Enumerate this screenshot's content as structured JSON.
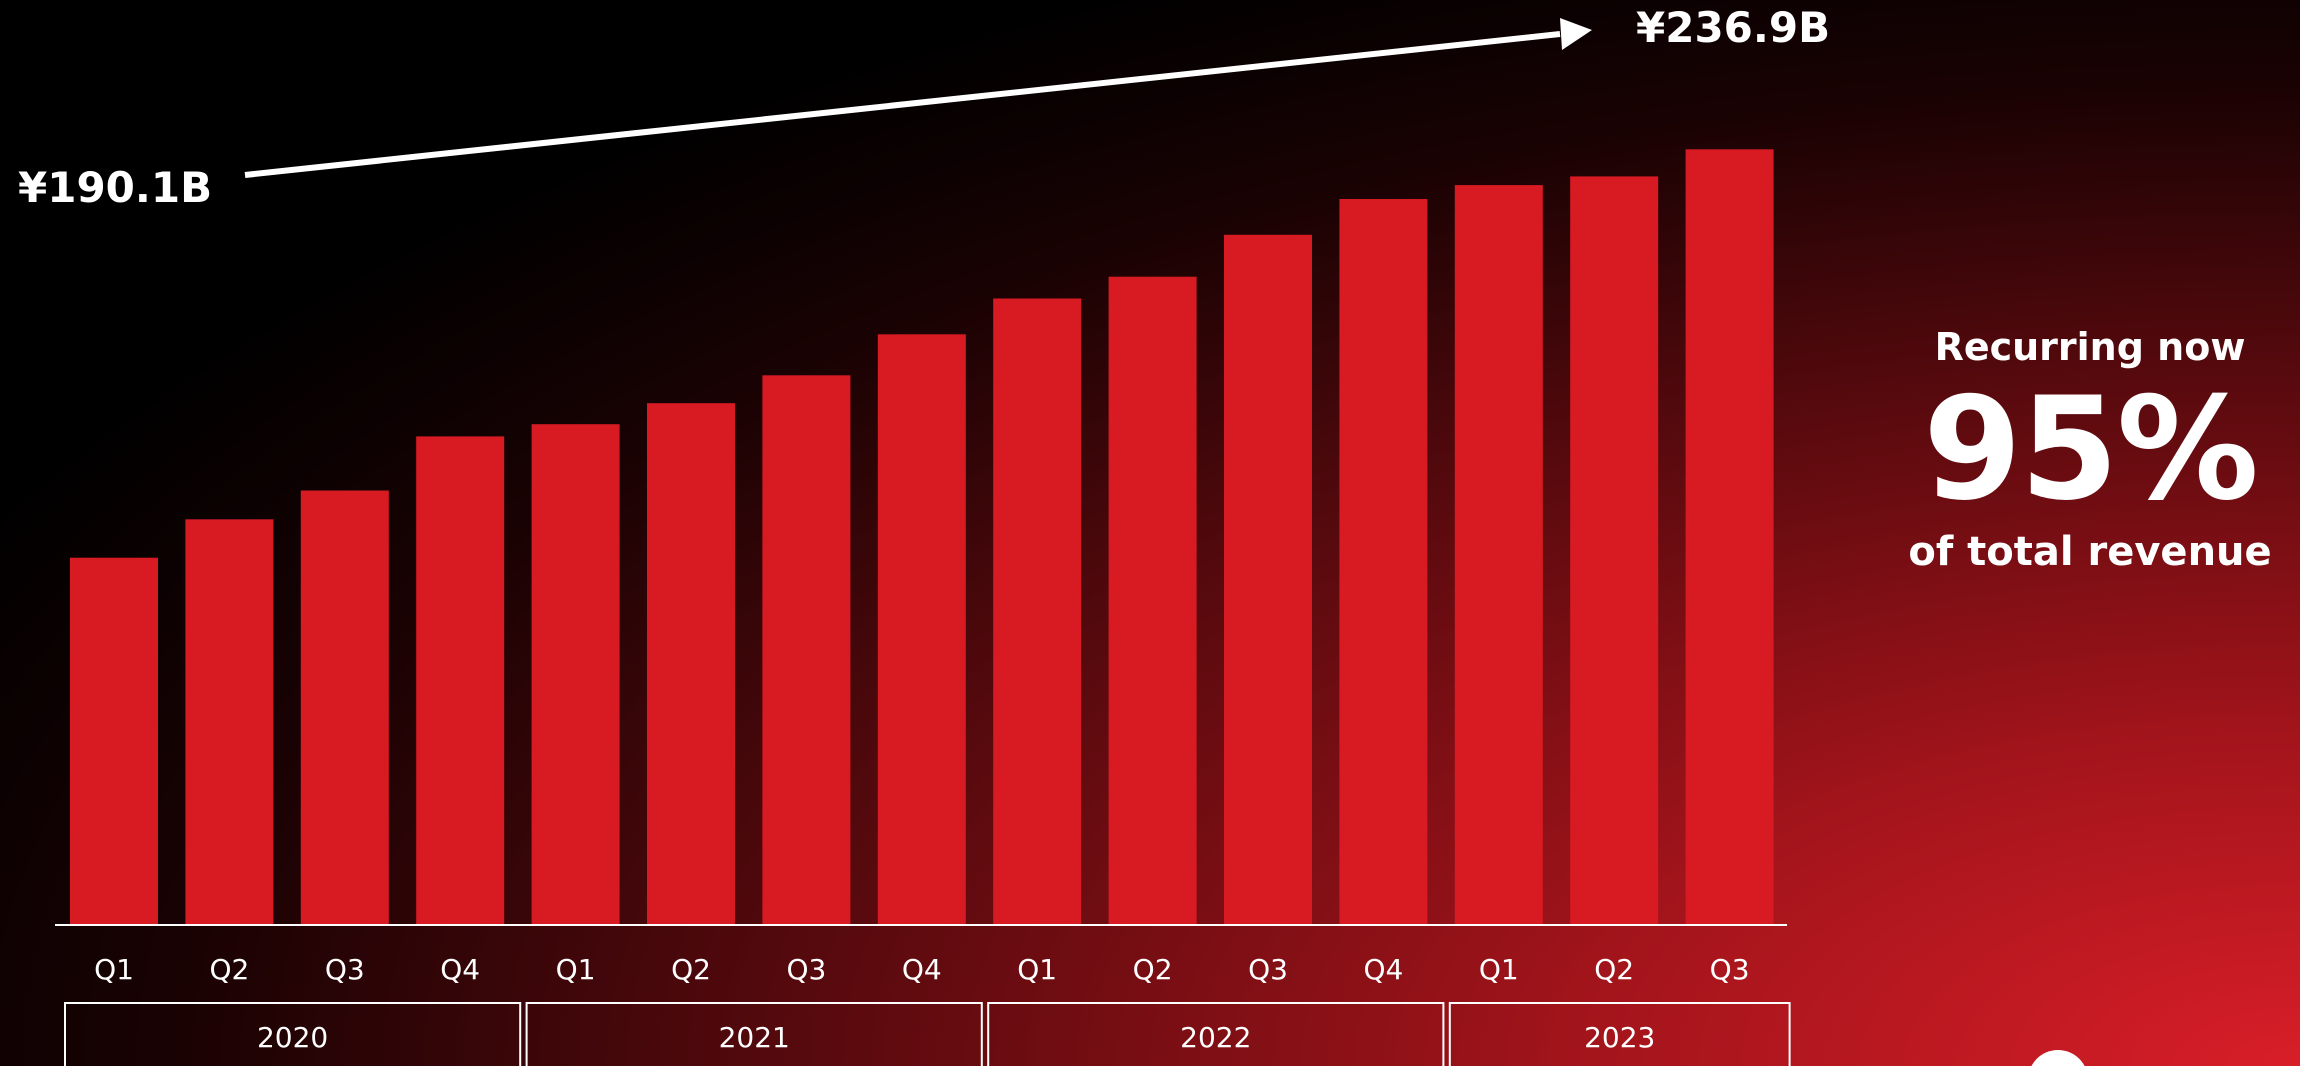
{
  "chart_data": {
    "type": "bar",
    "categories": [
      "Q1",
      "Q2",
      "Q3",
      "Q4",
      "Q1",
      "Q2",
      "Q3",
      "Q4",
      "Q1",
      "Q2",
      "Q3",
      "Q4",
      "Q1",
      "Q2",
      "Q3"
    ],
    "years": [
      {
        "label": "2020",
        "quarters": 4
      },
      {
        "label": "2021",
        "quarters": 4
      },
      {
        "label": "2022",
        "quarters": 4
      },
      {
        "label": "2023",
        "quarters": 3
      }
    ],
    "values": [
      190.1,
      194.5,
      197.8,
      204.0,
      205.4,
      207.8,
      211.0,
      215.7,
      219.8,
      222.3,
      227.1,
      231.2,
      232.8,
      233.8,
      236.9
    ],
    "ylim": [
      0,
      250
    ],
    "start_label": "¥190.1B",
    "end_label": "¥236.9B",
    "bar_color": "#d81b23",
    "grid": false,
    "legend": "none"
  },
  "callout": {
    "line1": "Recurring now",
    "big": "95%",
    "line3": "of total revenue"
  },
  "colors": {
    "accent": "#d81b23",
    "text": "#ffffff",
    "background": "#000000"
  }
}
